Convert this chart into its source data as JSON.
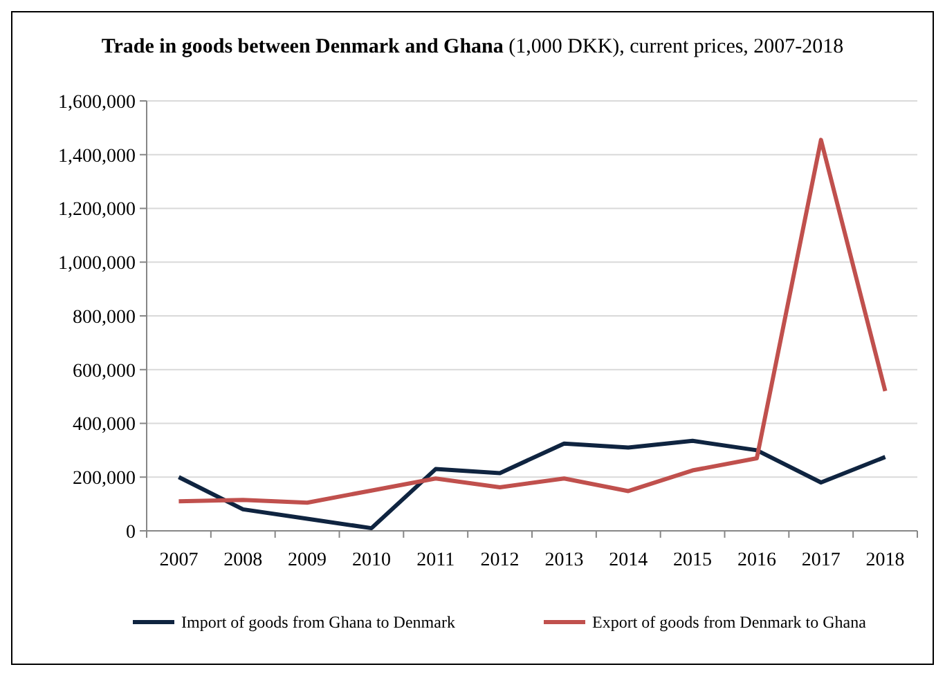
{
  "chart_data": {
    "type": "line",
    "title": "Trade in goods between Denmark and Ghana",
    "subtitle": "(1,000 DKK), current prices, 2007-2018",
    "categories": [
      "2007",
      "2008",
      "2009",
      "2010",
      "2011",
      "2012",
      "2013",
      "2014",
      "2015",
      "2016",
      "2017",
      "2018"
    ],
    "series": [
      {
        "name": "Import of goods from Ghana to Denmark",
        "color": "#0f2440",
        "values": [
          200000,
          80000,
          45000,
          10000,
          230000,
          215000,
          325000,
          310000,
          335000,
          300000,
          180000,
          275000
        ]
      },
      {
        "name": "Export of goods from Denmark to Ghana",
        "color": "#c0504d",
        "values": [
          110000,
          115000,
          105000,
          150000,
          195000,
          162000,
          195000,
          148000,
          225000,
          270000,
          1455000,
          520000
        ]
      }
    ],
    "ylim": [
      0,
      1600000
    ],
    "yticks": [
      {
        "value": 0,
        "label": "0"
      },
      {
        "value": 200000,
        "label": "200,000"
      },
      {
        "value": 400000,
        "label": "400,000"
      },
      {
        "value": 600000,
        "label": "600,000"
      },
      {
        "value": 800000,
        "label": "800,000"
      },
      {
        "value": 1000000,
        "label": "1,000,000"
      },
      {
        "value": 1200000,
        "label": "1,200,000"
      },
      {
        "value": 1400000,
        "label": "1,400,000"
      },
      {
        "value": 1600000,
        "label": "1,600,000"
      }
    ],
    "grid": "y",
    "legend": "bottom",
    "line_style": "solid",
    "marker": "none"
  }
}
